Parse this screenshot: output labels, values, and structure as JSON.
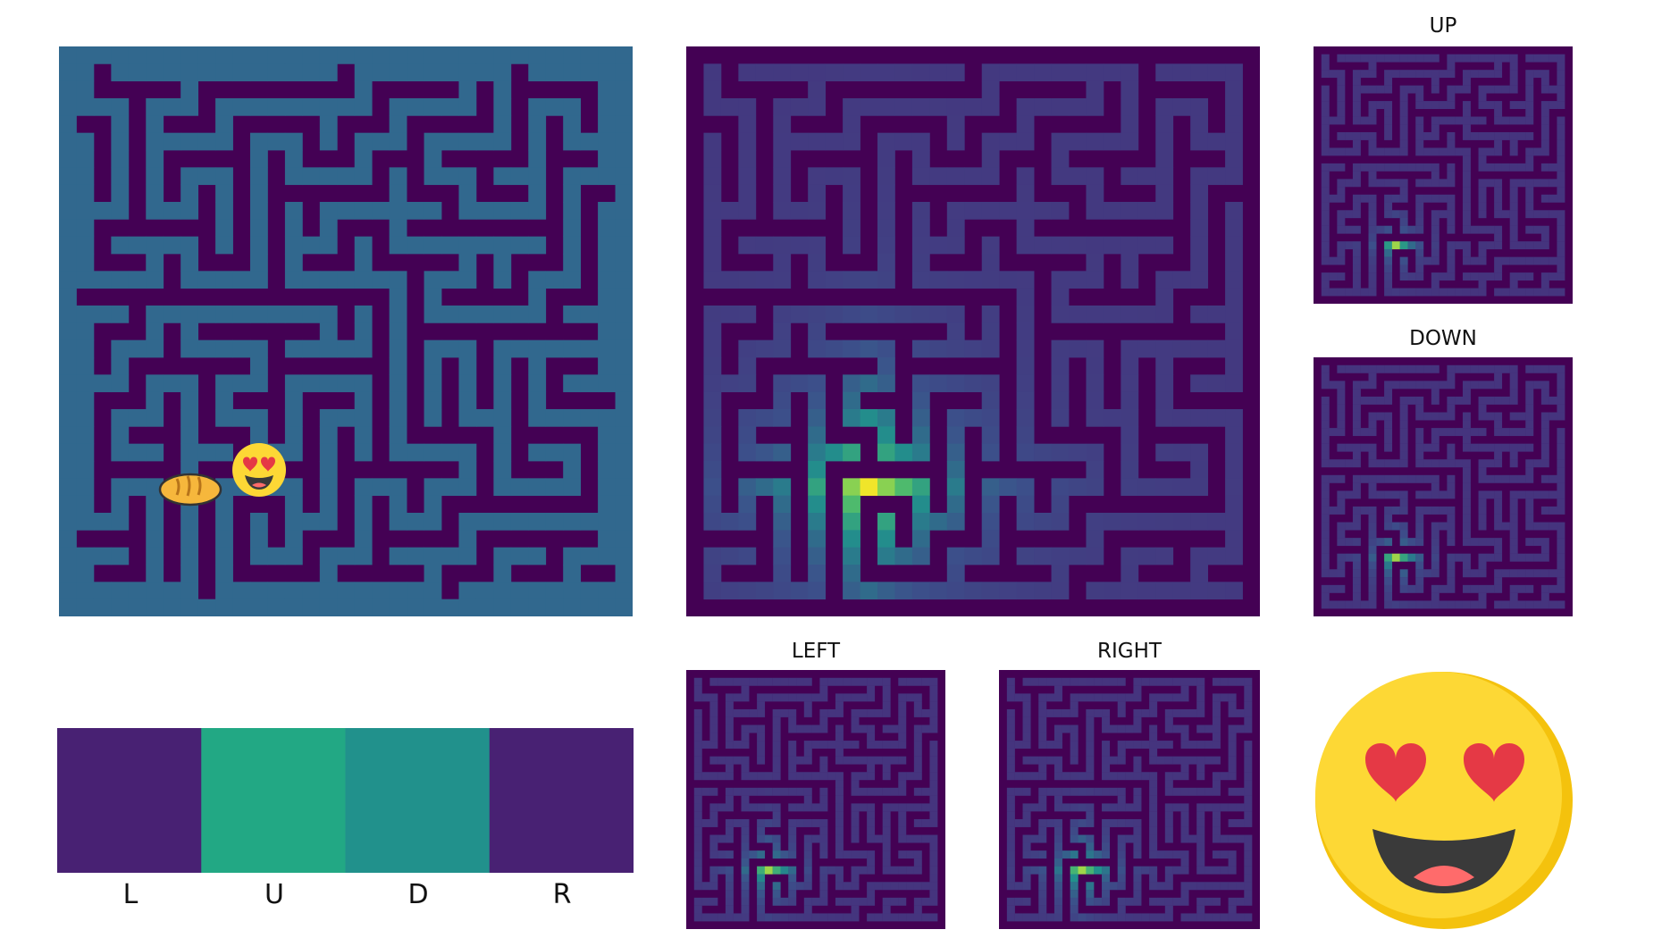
{
  "colors": {
    "background": "#ffffff",
    "maze_wall": "#440154",
    "maze_path": "#31688e",
    "value_low": "#472d7b",
    "value_mid": "#21918c",
    "value_high": "#fde725",
    "emoji_face": "#fdd835",
    "emoji_face_shadow": "#f4c20d",
    "emoji_heart": "#e53945",
    "emoji_mouth": "#3a3a3a",
    "emoji_tongue": "#ff6b6b",
    "bread": "#f6b73c",
    "bread_outline": "#333333"
  },
  "icons": {
    "agent": "heart-eyes-emoji-icon",
    "goal": "bread-icon",
    "large_emoji": "heart-eyes-emoji-icon"
  },
  "panels": {
    "maze": {
      "name": "maze-environment"
    },
    "value_map": {
      "name": "value-heatmap"
    },
    "up": {
      "title": "UP"
    },
    "down": {
      "title": "DOWN"
    },
    "left": {
      "title": "LEFT"
    },
    "right": {
      "title": "RIGHT"
    }
  },
  "action_probs": {
    "labels": [
      "L",
      "U",
      "D",
      "R"
    ],
    "values": [
      0.1,
      0.55,
      0.45,
      0.1
    ],
    "colors": [
      "#482173",
      "#22a884",
      "#21918c",
      "#482173"
    ]
  }
}
